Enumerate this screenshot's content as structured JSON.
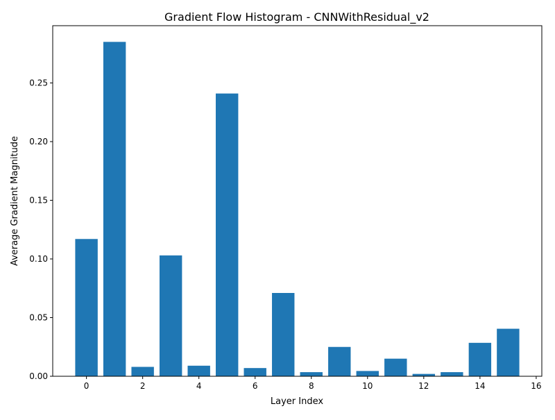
{
  "chart_data": {
    "type": "bar",
    "title": "Gradient Flow Histogram - CNNWithResidual_v2",
    "xlabel": "Layer Index",
    "ylabel": "Average Gradient Magnitude",
    "categories": [
      0,
      1,
      2,
      3,
      4,
      5,
      6,
      7,
      8,
      9,
      10,
      11,
      12,
      13,
      14,
      15
    ],
    "values": [
      0.117,
      0.285,
      0.008,
      0.103,
      0.009,
      0.241,
      0.007,
      0.071,
      0.0035,
      0.025,
      0.0045,
      0.015,
      0.002,
      0.0035,
      0.0285,
      0.0405
    ],
    "xlim": [
      -1.2,
      16.2
    ],
    "ylim": [
      0,
      0.2988
    ],
    "xticks": [
      0,
      2,
      4,
      6,
      8,
      10,
      12,
      14,
      16
    ],
    "yticks": [
      0.0,
      0.05,
      0.1,
      0.15,
      0.2,
      0.25
    ],
    "ytick_labels": [
      "0.00",
      "0.05",
      "0.10",
      "0.15",
      "0.20",
      "0.25"
    ],
    "bar_color": "#1f77b4",
    "grid": false,
    "legend": false
  }
}
